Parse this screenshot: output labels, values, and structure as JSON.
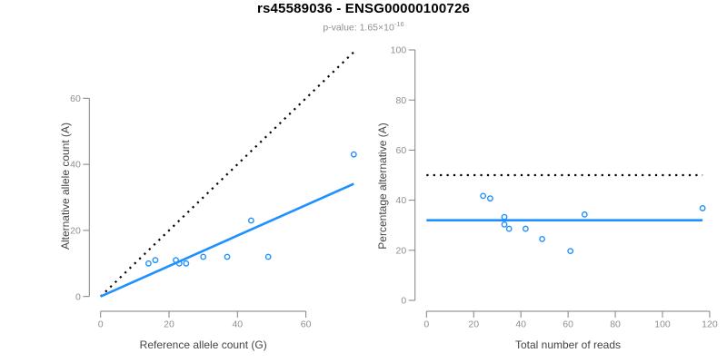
{
  "header": {
    "title": "rs45589036 - ENSG00000100726",
    "subtitle_prefix": "p-value: 1.65×10",
    "subtitle_exponent": "-16"
  },
  "colors": {
    "accent_blue": "#1e90ff",
    "reference_black": "#000000",
    "axis_gray": "#828282",
    "tick_label_gray": "#8f8f8f",
    "axis_title_gray": "#454545"
  },
  "chart_data": [
    {
      "type": "scatter",
      "name": "allele-count-scatter",
      "xlabel": "Reference allele count (G)",
      "ylabel": "Alternative allele count (A)",
      "xticks": [
        0,
        20,
        40,
        60
      ],
      "yticks": [
        0,
        20,
        40,
        60
      ],
      "xlim": [
        0,
        75
      ],
      "ylim": [
        0,
        74
      ],
      "grid": false,
      "points": [
        [
          14,
          10
        ],
        [
          16,
          11
        ],
        [
          22,
          11
        ],
        [
          23,
          10
        ],
        [
          25,
          10
        ],
        [
          30,
          12
        ],
        [
          37,
          12
        ],
        [
          44,
          23
        ],
        [
          49,
          12
        ],
        [
          74,
          43
        ]
      ],
      "lines": [
        {
          "name": "identity-line",
          "style": "dotted",
          "color": "#000000",
          "x1": 0,
          "y1": 0,
          "x2": 74,
          "y2": 74
        },
        {
          "name": "fit-line",
          "style": "solid",
          "color": "#1e90ff",
          "x1": 0,
          "y1": 0,
          "x2": 74,
          "y2": 34.1
        }
      ]
    },
    {
      "type": "scatter",
      "name": "percentage-scatter",
      "xlabel": "Total number of reads",
      "ylabel": "Percentage alternative (A)",
      "xticks": [
        0,
        20,
        40,
        60,
        80,
        100,
        120
      ],
      "yticks": [
        0,
        20,
        40,
        60,
        80,
        100
      ],
      "xlim": [
        0,
        120
      ],
      "ylim": [
        0,
        100
      ],
      "grid": false,
      "points": [
        [
          24,
          41.7
        ],
        [
          27,
          40.7
        ],
        [
          33,
          33.3
        ],
        [
          33,
          30.3
        ],
        [
          35,
          28.6
        ],
        [
          42,
          28.6
        ],
        [
          49,
          24.5
        ],
        [
          61,
          19.7
        ],
        [
          67,
          34.3
        ],
        [
          117,
          36.8
        ]
      ],
      "lines": [
        {
          "name": "fifty-percent-line",
          "style": "dotted",
          "color": "#000000",
          "x1": 0,
          "y1": 50,
          "x2": 117,
          "y2": 50
        },
        {
          "name": "mean-percentage-line",
          "style": "solid",
          "color": "#1e90ff",
          "x1": 0,
          "y1": 32,
          "x2": 117,
          "y2": 32
        }
      ]
    }
  ]
}
